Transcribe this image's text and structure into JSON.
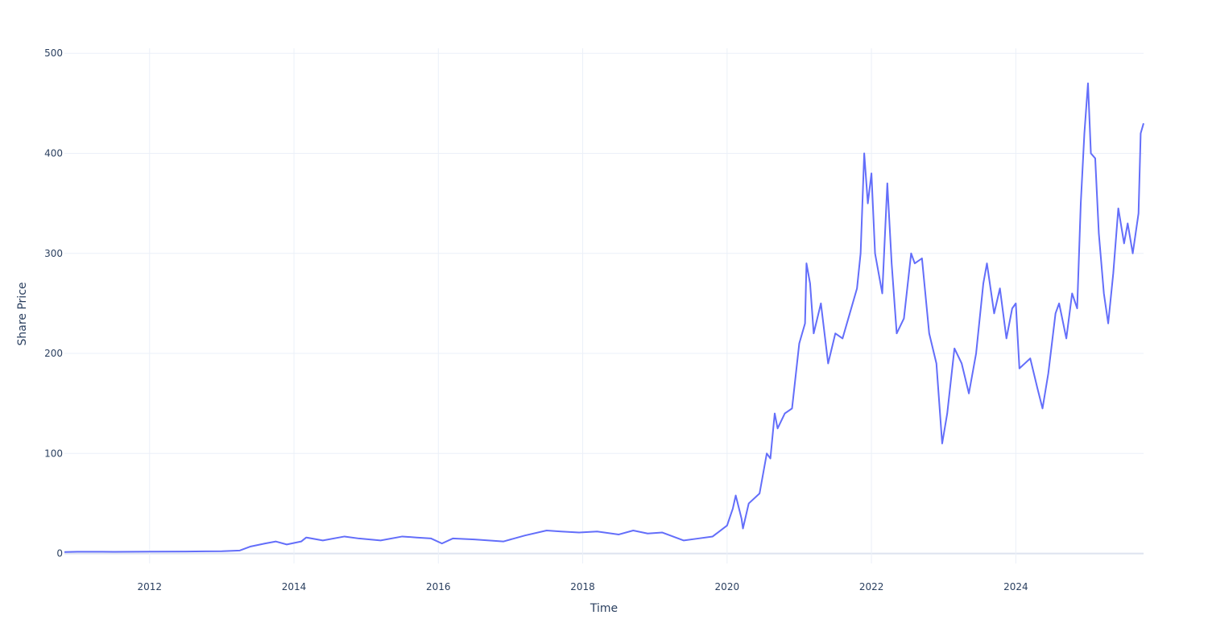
{
  "chart_data": {
    "type": "line",
    "x_label": "Time",
    "y_label": "Share Price",
    "x": [
      2010.82,
      2011.0,
      2011.5,
      2012.0,
      2012.5,
      2013.0,
      2013.25,
      2013.4,
      2013.6,
      2013.75,
      2013.9,
      2014.1,
      2014.17,
      2014.4,
      2014.7,
      2014.9,
      2015.2,
      2015.5,
      2015.7,
      2015.9,
      2016.05,
      2016.2,
      2016.5,
      2016.9,
      2017.2,
      2017.5,
      2017.7,
      2017.95,
      2018.2,
      2018.5,
      2018.7,
      2018.9,
      2019.1,
      2019.4,
      2019.6,
      2019.8,
      2020.0,
      2020.08,
      2020.12,
      2020.2,
      2020.22,
      2020.3,
      2020.45,
      2020.55,
      2020.6,
      2020.66,
      2020.7,
      2020.8,
      2020.9,
      2021.0,
      2021.08,
      2021.1,
      2021.15,
      2021.2,
      2021.3,
      2021.4,
      2021.5,
      2021.6,
      2021.7,
      2021.8,
      2021.85,
      2021.9,
      2021.95,
      2022.0,
      2022.05,
      2022.1,
      2022.15,
      2022.22,
      2022.28,
      2022.35,
      2022.45,
      2022.55,
      2022.6,
      2022.7,
      2022.8,
      2022.9,
      2022.98,
      2023.05,
      2023.15,
      2023.25,
      2023.35,
      2023.45,
      2023.55,
      2023.6,
      2023.7,
      2023.78,
      2023.87,
      2023.95,
      2024.0,
      2024.05,
      2024.2,
      2024.3,
      2024.37,
      2024.45,
      2024.55,
      2024.6,
      2024.7,
      2024.78,
      2024.85,
      2024.9,
      2024.95,
      2025.0,
      2025.04,
      2025.1,
      2025.15,
      2025.22,
      2025.28,
      2025.35,
      2025.42,
      2025.5,
      2025.55,
      2025.62,
      2025.7,
      2025.73,
      2025.77
    ],
    "series": [
      {
        "name": "Share Price",
        "color": "#636efa",
        "values": [
          1.5,
          1.8,
          1.7,
          1.9,
          2.0,
          2.3,
          3,
          7,
          10,
          12,
          9,
          12,
          16,
          13,
          17,
          15,
          13,
          17,
          16,
          15,
          10,
          15,
          14,
          12,
          18,
          23,
          22,
          21,
          22,
          19,
          23,
          20,
          21,
          13,
          15,
          17,
          28,
          45,
          58,
          35,
          25,
          50,
          60,
          100,
          95,
          140,
          125,
          140,
          145,
          210,
          230,
          290,
          270,
          220,
          250,
          190,
          220,
          215,
          240,
          265,
          300,
          400,
          350,
          380,
          300,
          280,
          260,
          370,
          290,
          220,
          235,
          300,
          290,
          295,
          220,
          190,
          110,
          140,
          205,
          190,
          160,
          200,
          270,
          290,
          240,
          265,
          215,
          245,
          250,
          185,
          195,
          165,
          145,
          180,
          240,
          250,
          215,
          260,
          245,
          350,
          420,
          470,
          400,
          395,
          320,
          260,
          230,
          280,
          345,
          310,
          330,
          300,
          340,
          420,
          430
        ]
      }
    ],
    "xlim": [
      2010.82,
      2025.77
    ],
    "xticks": [
      2012,
      2014,
      2016,
      2018,
      2020,
      2022,
      2024
    ],
    "ylim": [
      -10,
      505
    ],
    "yticks": [
      0,
      100,
      200,
      300,
      400,
      500
    ],
    "grid": true
  }
}
